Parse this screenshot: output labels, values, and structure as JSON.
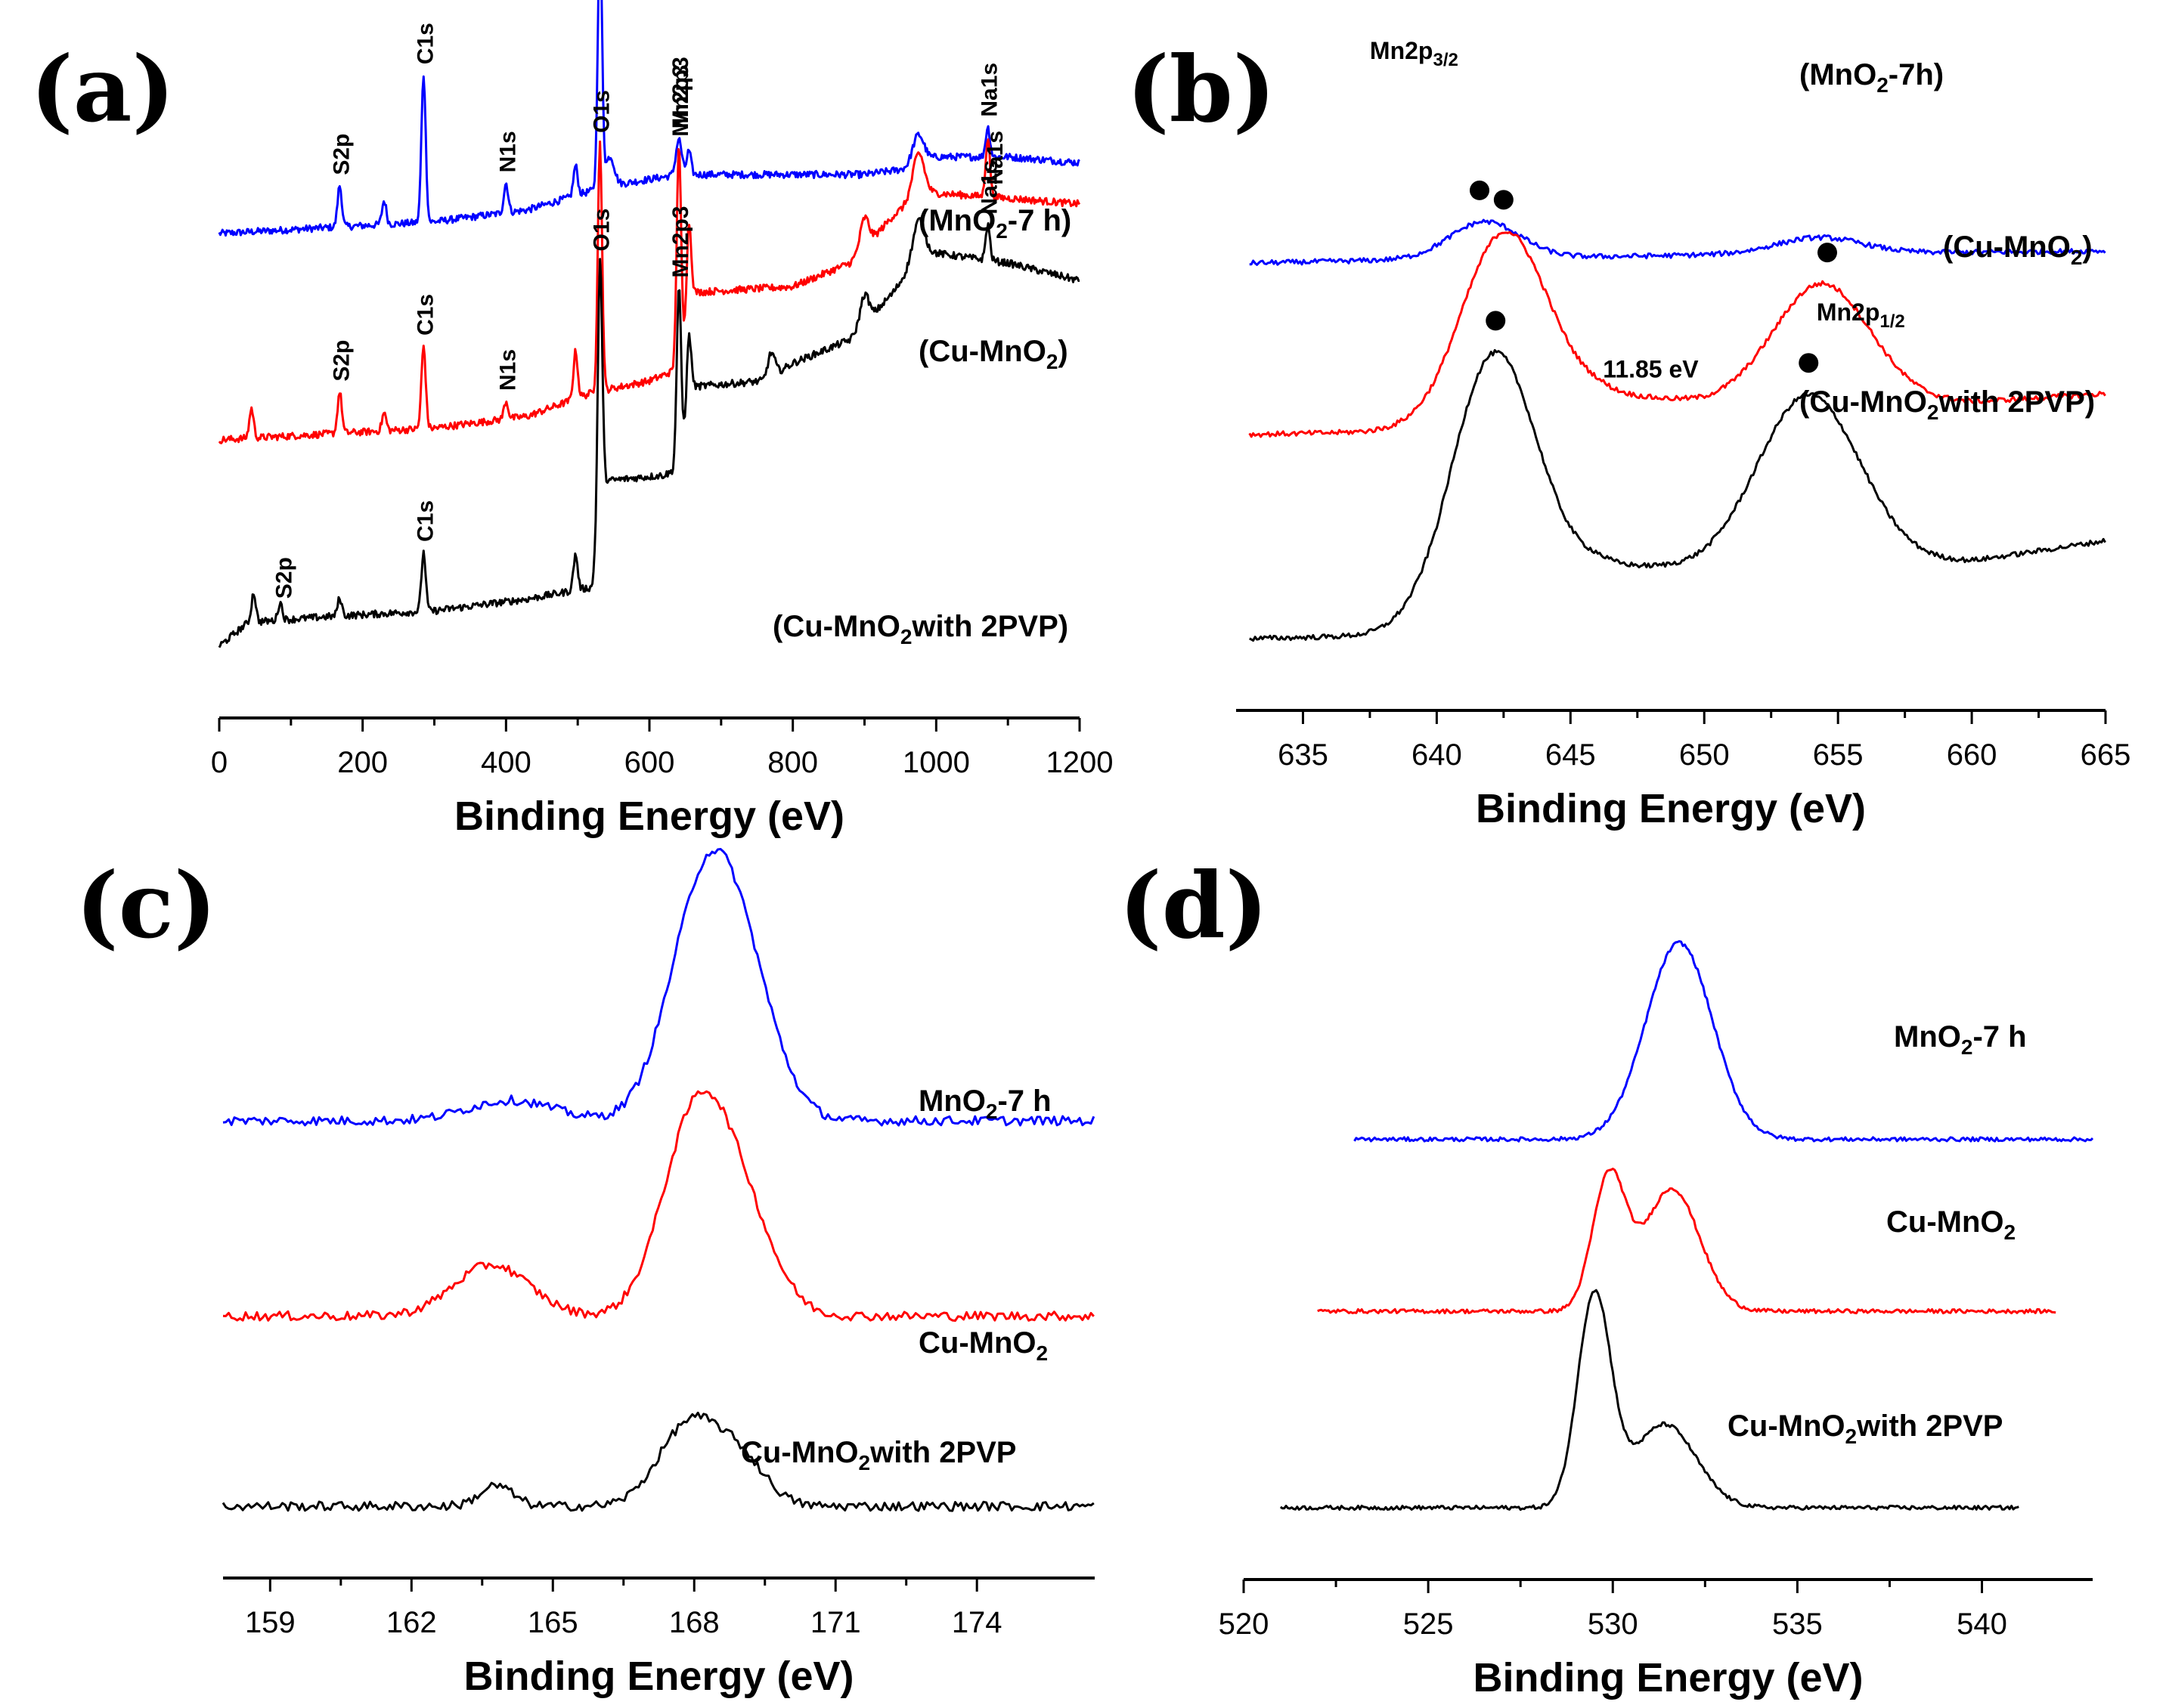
{
  "colors": {
    "mno2_7h": "#0000ff",
    "cu_mno2": "#ff0000",
    "cu_mno2_pvp": "#000000"
  },
  "chart_data": [
    {
      "panel": "(a)",
      "type": "line",
      "xlabel": "Binding Energy (eV)",
      "xlim": [
        0,
        1200
      ],
      "xticks": [
        0,
        200,
        400,
        600,
        800,
        1000,
        1200
      ],
      "series": [
        {
          "name": "(MnO2-7 h)",
          "label_main": "(MnO",
          "label_sub": "2",
          "label_tail": "-7 h)",
          "color": "#0000ff",
          "offset": 0.7,
          "baseline": [
            [
              0,
              0.0
            ],
            [
              150,
              0.01
            ],
            [
              300,
              0.02
            ],
            [
              430,
              0.04
            ],
            [
              540,
              0.08
            ],
            [
              640,
              0.1
            ],
            [
              760,
              0.1
            ],
            [
              900,
              0.1
            ],
            [
              960,
              0.11
            ],
            [
              1000,
              0.13
            ],
            [
              1100,
              0.13
            ],
            [
              1200,
              0.12
            ]
          ],
          "peaks": [
            [
              168,
              0.07,
              3
            ],
            [
              230,
              0.04,
              3
            ],
            [
              285,
              0.25,
              3
            ],
            [
              400,
              0.05,
              3
            ],
            [
              497,
              0.05,
              3
            ],
            [
              531,
              0.43,
              3
            ],
            [
              545,
              0.05,
              6
            ],
            [
              641,
              0.06,
              4
            ],
            [
              655,
              0.04,
              3
            ],
            [
              975,
              0.05,
              8
            ],
            [
              1072,
              0.05,
              3
            ]
          ]
        },
        {
          "name": "(Cu-MnO2)",
          "label_main": "(Cu-MnO",
          "label_sub": "2",
          "label_tail": ")",
          "color": "#ff0000",
          "offset": 0.35,
          "baseline": [
            [
              0,
              0.0
            ],
            [
              150,
              0.01
            ],
            [
              300,
              0.02
            ],
            [
              430,
              0.04
            ],
            [
              520,
              0.08
            ],
            [
              600,
              0.1
            ],
            [
              640,
              0.12
            ],
            [
              660,
              0.25
            ],
            [
              800,
              0.26
            ],
            [
              880,
              0.3
            ],
            [
              940,
              0.38
            ],
            [
              980,
              0.42
            ],
            [
              1100,
              0.41
            ],
            [
              1200,
              0.4
            ]
          ],
          "peaks": [
            [
              45,
              0.05,
              3
            ],
            [
              168,
              0.07,
              3
            ],
            [
              230,
              0.03,
              3
            ],
            [
              285,
              0.14,
              3
            ],
            [
              400,
              0.03,
              3
            ],
            [
              497,
              0.08,
              3
            ],
            [
              531,
              0.42,
              3
            ],
            [
              641,
              0.37,
              3
            ],
            [
              655,
              0.15,
              3
            ],
            [
              900,
              0.05,
              6
            ],
            [
              975,
              0.07,
              8
            ],
            [
              1072,
              0.1,
              3
            ]
          ]
        },
        {
          "name": "(Cu-MnO2with 2PVP)",
          "label_main": "(Cu-MnO",
          "label_sub": "2",
          "label_tail": "with 2PVP)",
          "color": "#000000",
          "offset": 0.0,
          "baseline": [
            [
              0,
              0.0
            ],
            [
              40,
              0.04
            ],
            [
              150,
              0.05
            ],
            [
              300,
              0.06
            ],
            [
              430,
              0.08
            ],
            [
              520,
              0.1
            ],
            [
              535,
              0.28
            ],
            [
              620,
              0.29
            ],
            [
              640,
              0.3
            ],
            [
              660,
              0.44
            ],
            [
              760,
              0.45
            ],
            [
              800,
              0.48
            ],
            [
              880,
              0.52
            ],
            [
              940,
              0.6
            ],
            [
              980,
              0.67
            ],
            [
              1100,
              0.65
            ],
            [
              1200,
              0.62
            ]
          ],
          "peaks": [
            [
              48,
              0.05,
              3
            ],
            [
              85,
              0.03,
              3
            ],
            [
              168,
              0.03,
              3
            ],
            [
              285,
              0.1,
              3
            ],
            [
              497,
              0.06,
              3
            ],
            [
              531,
              0.42,
              3
            ],
            [
              641,
              0.3,
              3
            ],
            [
              655,
              0.12,
              3
            ],
            [
              770,
              0.04,
              5
            ],
            [
              900,
              0.05,
              6
            ],
            [
              975,
              0.06,
              8
            ],
            [
              1072,
              0.06,
              3
            ]
          ]
        }
      ],
      "annotations": [
        {
          "text": "S2p",
          "x": 168,
          "series": 0
        },
        {
          "text": "C1s",
          "x": 285,
          "series": 0
        },
        {
          "text": "N1s",
          "x": 400,
          "series": 0
        },
        {
          "text": "O1s",
          "x": 531,
          "series": 0
        },
        {
          "text": "Mn2p3",
          "x": 641,
          "series": 0
        },
        {
          "text": "Na1s",
          "x": 1072,
          "series": 0
        },
        {
          "text": "S2p",
          "x": 168,
          "series": 1
        },
        {
          "text": "C1s",
          "x": 285,
          "series": 1
        },
        {
          "text": "N1s",
          "x": 400,
          "series": 1
        },
        {
          "text": "O1s",
          "x": 531,
          "series": 1
        },
        {
          "text": "Mn2p3",
          "x": 641,
          "series": 1
        },
        {
          "text": "Na1s",
          "x": 1080,
          "series": 1
        },
        {
          "text": "S2p",
          "x": 88,
          "series": 2
        },
        {
          "text": "C1s",
          "x": 285,
          "series": 2
        },
        {
          "text": "O1s",
          "x": 531,
          "series": 2
        },
        {
          "text": "Mn2p3",
          "x": 641,
          "series": 2
        },
        {
          "text": "Na1s",
          "x": 1072,
          "series": 2
        }
      ]
    },
    {
      "panel": "(b)",
      "type": "line",
      "xlabel": "Binding Energy (eV)",
      "xlim": [
        632.5,
        665
      ],
      "xticks": [
        635,
        640,
        645,
        650,
        655,
        660,
        665
      ],
      "series": [
        {
          "name": "(MnO2-7h)",
          "label_main": "(MnO",
          "label_sub": "2",
          "label_tail": "-7h)",
          "color": "#0000ff",
          "offset": 0.92,
          "baseline": [
            [
              633,
              0.0
            ],
            [
              640,
              0.01
            ],
            [
              650,
              0.02
            ],
            [
              665,
              0.03
            ]
          ],
          "peaks": [
            [
              641.8,
              0.09,
              1.3
            ],
            [
              654.3,
              0.04,
              1.6
            ]
          ],
          "markers": [
            641.6
          ]
        },
        {
          "name": "(Cu-MnO2)",
          "label_main": "(Cu-MnO",
          "label_sub": "2",
          "label_tail": ")",
          "color": "#ff0000",
          "offset": 0.5,
          "baseline": [
            [
              633,
              0.0
            ],
            [
              640,
              0.01
            ],
            [
              646,
              0.1
            ],
            [
              650,
              0.08
            ],
            [
              660,
              0.08
            ],
            [
              665,
              0.1
            ]
          ],
          "peaks": [
            [
              642.5,
              0.45,
              1.6
            ],
            [
              654.4,
              0.29,
              1.8
            ]
          ],
          "markers": [
            642.5,
            654.6
          ]
        },
        {
          "name": "(Cu-MnO2with 2PVP)",
          "label_main": "(Cu-MnO",
          "label_sub": "2",
          "label_tail": "with 2PVP)",
          "color": "#000000",
          "offset": 0.0,
          "baseline": [
            [
              633,
              0.0
            ],
            [
              640,
              0.01
            ],
            [
              646,
              0.18
            ],
            [
              650,
              0.17
            ],
            [
              660,
              0.19
            ],
            [
              665,
              0.24
            ]
          ],
          "peaks": [
            [
              642.1,
              0.63,
              1.6
            ],
            [
              653.9,
              0.42,
              1.9
            ]
          ],
          "markers": [
            642.2,
            653.9
          ]
        }
      ],
      "annotations": [
        {
          "kind": "sub",
          "main": "Mn2p",
          "sub": "3/2",
          "x": 637.5,
          "y": 1.42
        },
        {
          "kind": "sub",
          "main": "Mn2p",
          "sub": "1/2",
          "x": 654.2,
          "y": 0.78
        },
        {
          "kind": "plain",
          "text": "11.85 eV",
          "x": 648.0,
          "y": 0.64
        }
      ]
    },
    {
      "panel": "(c)",
      "type": "line",
      "xlabel": "Binding Energy (eV)",
      "xlim": [
        158,
        176.5
      ],
      "xticks": [
        159,
        162,
        165,
        168,
        171,
        174
      ],
      "series": [
        {
          "name": "MnO2-7 h",
          "label_main": "MnO",
          "label_sub": "2",
          "label_tail": "-7 h",
          "color": "#0000ff",
          "offset": 0.75,
          "baseline": [
            [
              158,
              0.0
            ],
            [
              176.5,
              0.0
            ]
          ],
          "peaks": [
            [
              164.1,
              0.04,
              0.9
            ],
            [
              168.2,
              0.42,
              0.75
            ],
            [
              169.1,
              0.2,
              0.7
            ]
          ]
        },
        {
          "name": "Cu-MnO2",
          "label_main": "Cu-MnO",
          "label_sub": "2",
          "label_tail": "",
          "color": "#ff0000",
          "offset": 0.37,
          "baseline": [
            [
              158,
              0.0
            ],
            [
              176.5,
              0.0
            ]
          ],
          "peaks": [
            [
              163.7,
              0.1,
              0.8
            ],
            [
              168.0,
              0.36,
              0.7
            ],
            [
              169.0,
              0.18,
              0.7
            ]
          ]
        },
        {
          "name": "Cu-MnO2with 2PVP",
          "label_main": "Cu-MnO",
          "label_sub": "2",
          "label_tail": "with 2PVP",
          "color": "#000000",
          "offset": 0.0,
          "baseline": [
            [
              158,
              0.0
            ],
            [
              176.5,
              0.0
            ]
          ],
          "peaks": [
            [
              163.8,
              0.04,
              0.35
            ],
            [
              167.9,
              0.16,
              0.65
            ],
            [
              169.0,
              0.08,
              0.55
            ]
          ]
        }
      ]
    },
    {
      "panel": "(d)",
      "type": "line",
      "xlabel": "Binding Energy (eV)",
      "xlim": [
        520,
        543
      ],
      "xticks": [
        520,
        525,
        530,
        535,
        540
      ],
      "series": [
        {
          "name": "MnO2-7 h",
          "label_main": "MnO",
          "label_sub": "2",
          "label_tail": "-7 h",
          "color": "#0000ff",
          "offset": 0.75,
          "baseline": [
            [
              523,
              0.0
            ],
            [
              543,
              0.0
            ]
          ],
          "peaks": [
            [
              531.8,
              0.4,
              0.9
            ]
          ],
          "xrange": [
            523,
            543
          ]
        },
        {
          "name": "Cu-MnO2",
          "label_main": "Cu-MnO",
          "label_sub": "2",
          "label_tail": "",
          "color": "#ff0000",
          "offset": 0.4,
          "baseline": [
            [
              522,
              0.0
            ],
            [
              542,
              0.0
            ]
          ],
          "peaks": [
            [
              529.9,
              0.27,
              0.45
            ],
            [
              531.6,
              0.25,
              0.75
            ]
          ],
          "xrange": [
            522,
            542
          ]
        },
        {
          "name": "Cu-MnO2with 2PVP",
          "label_main": "Cu-MnO",
          "label_sub": "2",
          "label_tail": "with 2PVP",
          "color": "#000000",
          "offset": 0.0,
          "baseline": [
            [
              521,
              0.0
            ],
            [
              541,
              0.0
            ]
          ],
          "peaks": [
            [
              529.5,
              0.43,
              0.45
            ],
            [
              531.4,
              0.17,
              0.85
            ]
          ],
          "xrange": [
            521,
            541
          ]
        }
      ]
    }
  ]
}
